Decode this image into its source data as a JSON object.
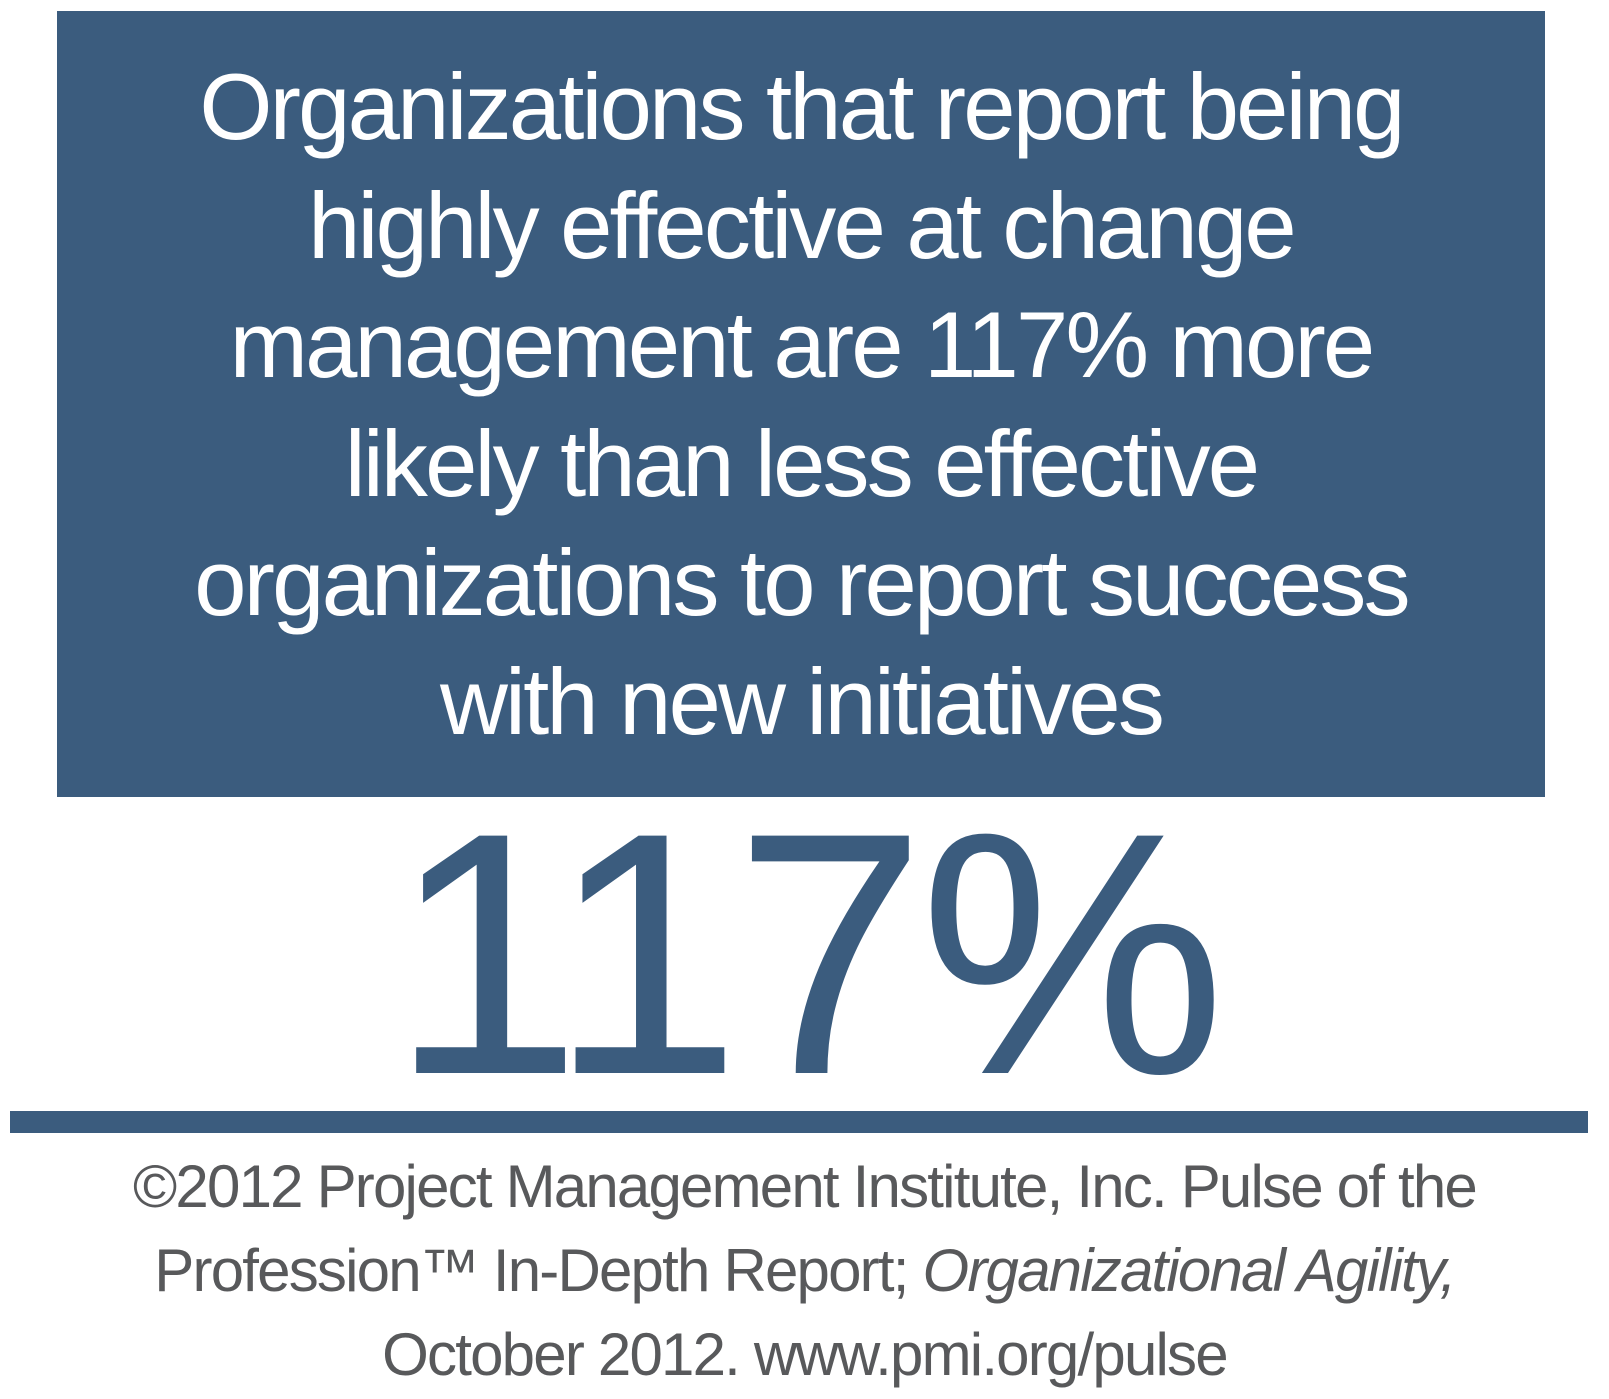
{
  "colors": {
    "panel_blue": "#3B5C7E",
    "footer_gray": "#58595B",
    "background": "#FFFFFF",
    "quote_text": "#FFFFFF"
  },
  "quote": {
    "lines": [
      "Organizations that report being",
      "highly effective at change",
      "management are 117% more",
      "likely than less effective",
      "organizations to report success",
      "with new initiatives"
    ]
  },
  "statistic": {
    "value": "117%"
  },
  "footer": {
    "line1": "©2012 Project Management Institute, Inc. Pulse of the",
    "line2_normal": "Profession™ In-Depth Report; ",
    "line2_italic": "Organizational Agility,",
    "line3": "October 2012. www.pmi.org/pulse"
  }
}
